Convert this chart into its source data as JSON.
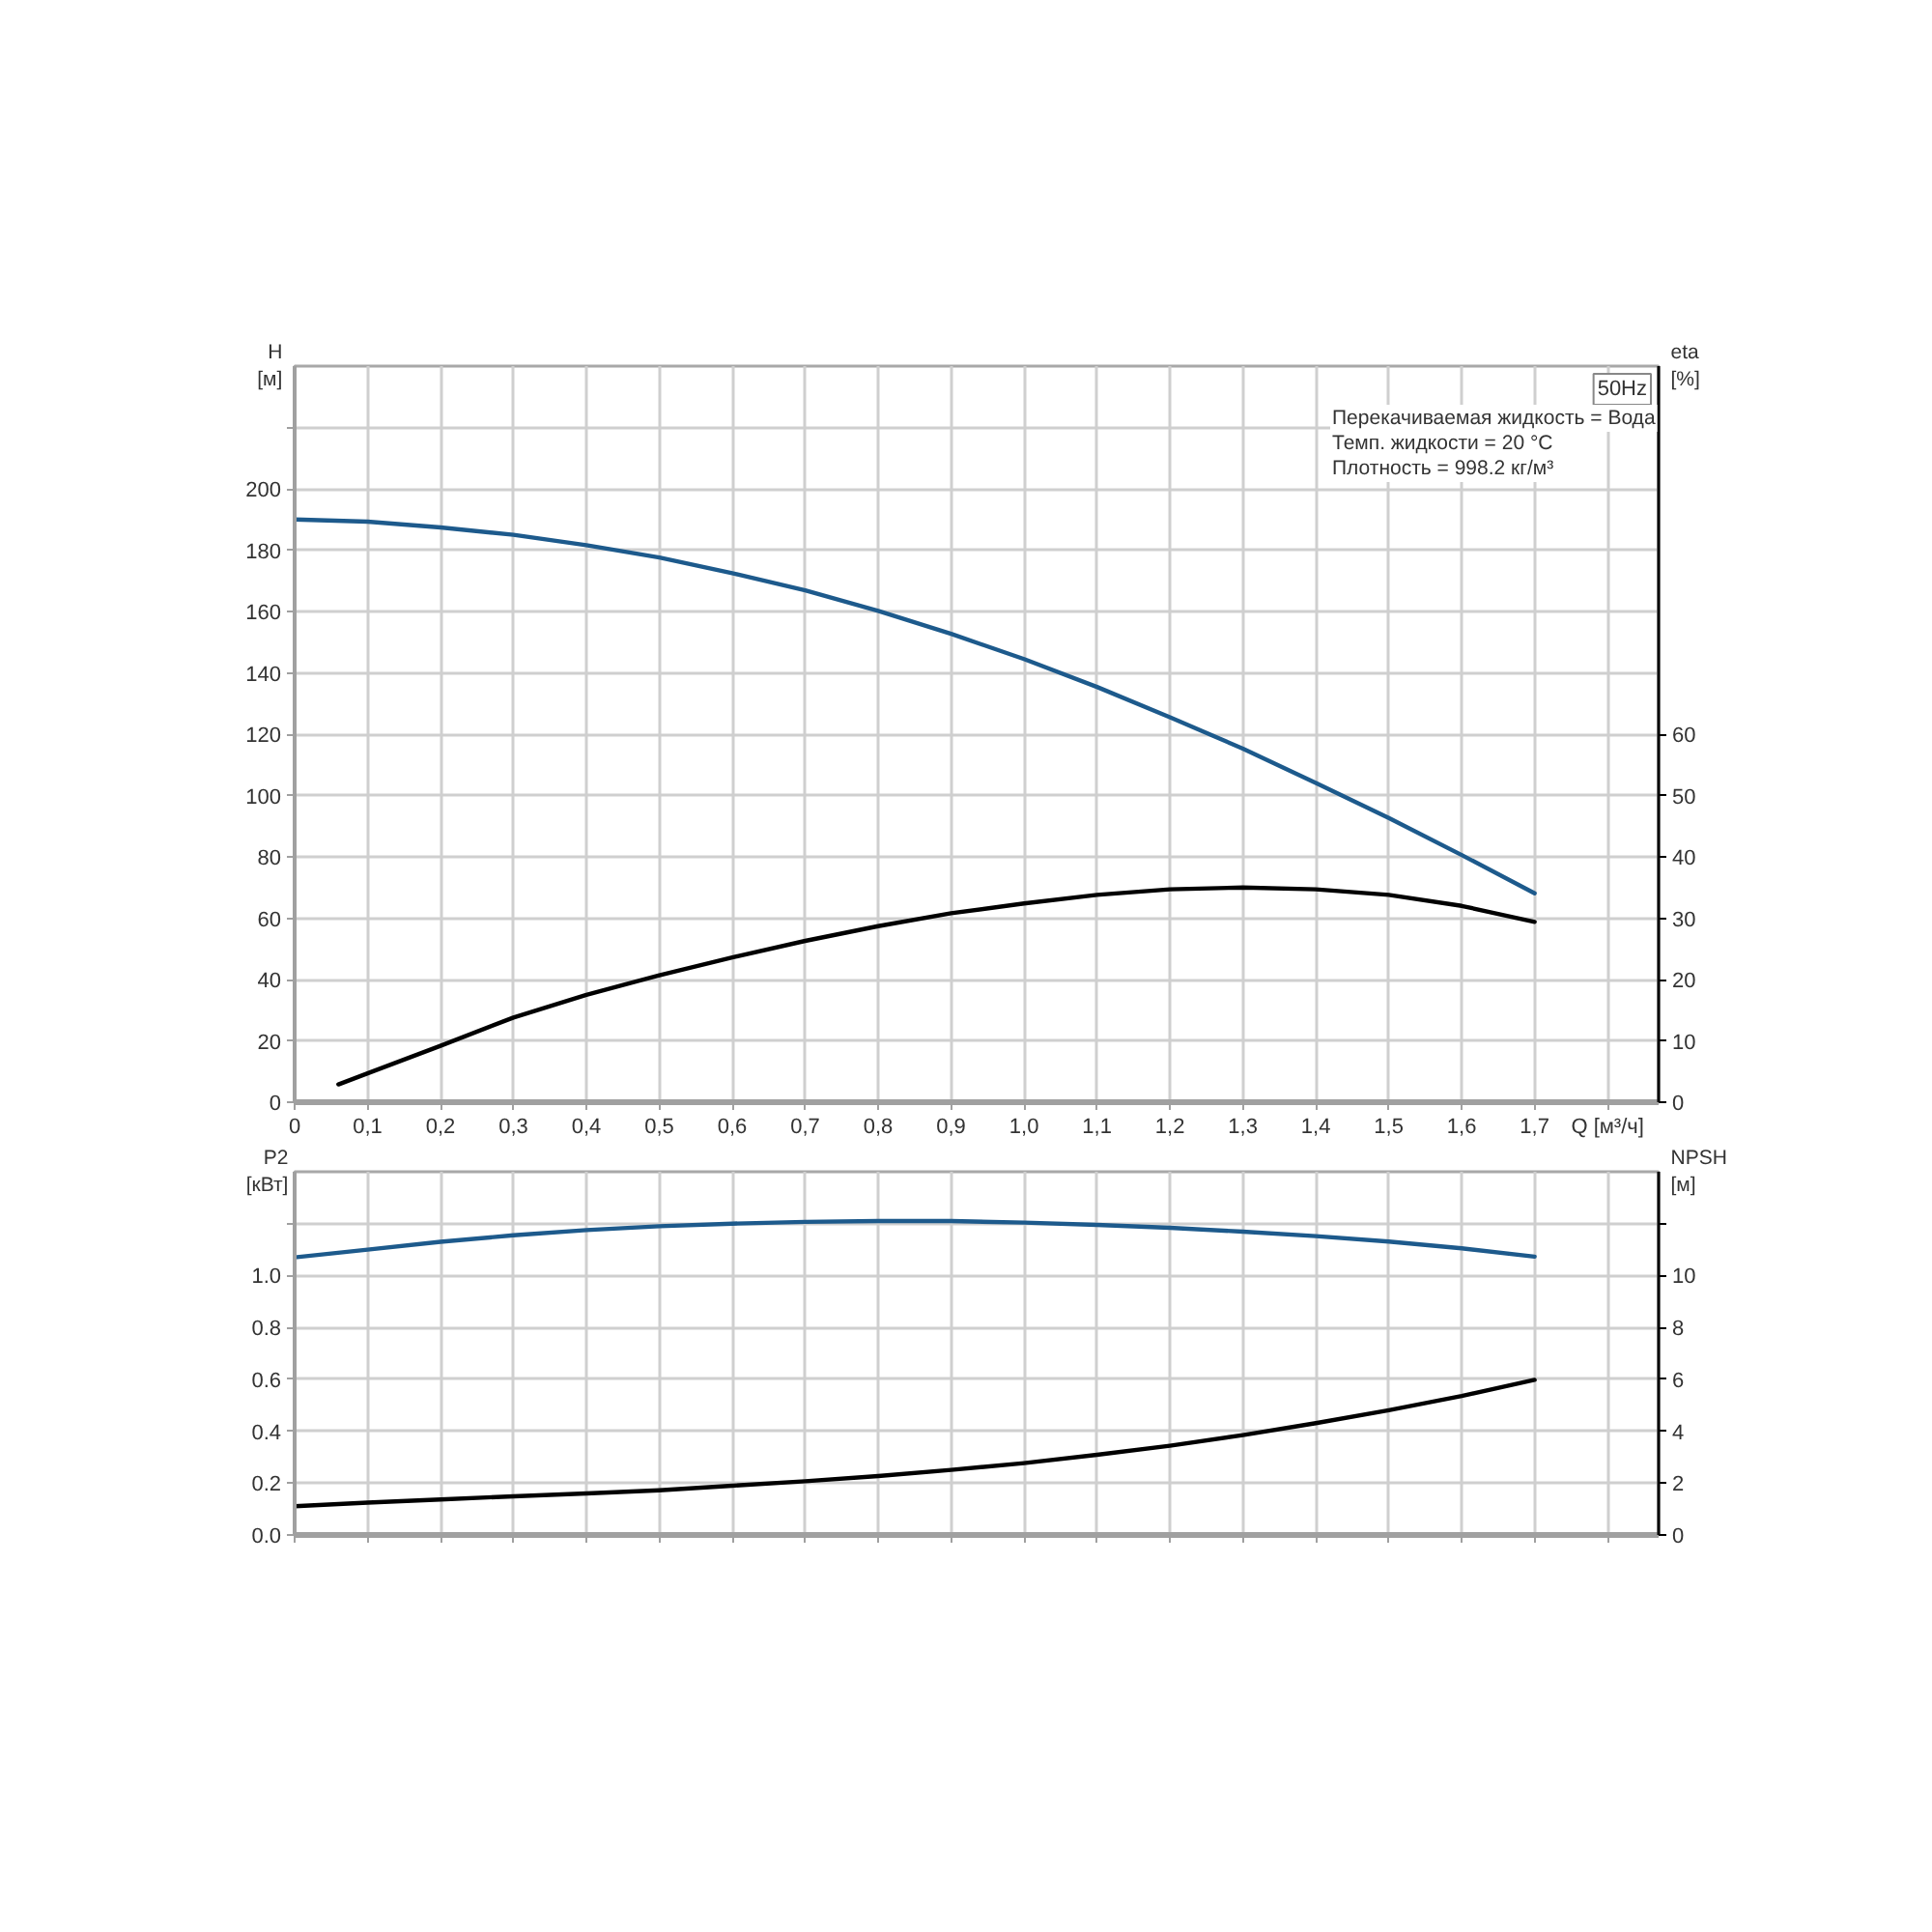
{
  "chart_data": [
    {
      "type": "line",
      "xlabel": "Q [м³/ч]",
      "ylabel": "H [м]",
      "y2label": "eta [%]",
      "annotations": [
        "50Hz",
        "Перекачиваемая жидкость = Вода",
        "Темп. жидкости = 20 °C",
        "Плотность = 998.2 кг/м³"
      ],
      "x": [
        0,
        0.1,
        0.2,
        0.3,
        0.4,
        0.5,
        0.6,
        0.7,
        0.8,
        0.9,
        1.0,
        1.1,
        1.2,
        1.3,
        1.4,
        1.5,
        1.6,
        1.7
      ],
      "xlim": [
        0,
        1.87
      ],
      "xticks": [
        0,
        {
          "value": 0.1,
          "label": "0,1"
        },
        {
          "value": 0.2,
          "label": "0,2"
        },
        {
          "value": 0.3,
          "label": "0,3"
        },
        {
          "value": 0.4,
          "label": "0,4"
        },
        {
          "value": 0.5,
          "label": "0,5"
        },
        {
          "value": 0.6,
          "label": "0,6"
        },
        {
          "value": 0.7,
          "label": "0,7"
        },
        {
          "value": 0.8,
          "label": "0,8"
        },
        {
          "value": 0.9,
          "label": "0,9"
        },
        {
          "value": 1.0,
          "label": "1,0"
        },
        {
          "value": 1.1,
          "label": "1,1"
        },
        {
          "value": 1.2,
          "label": "1,2"
        },
        {
          "value": 1.3,
          "label": "1,3"
        },
        {
          "value": 1.4,
          "label": "1,4"
        },
        {
          "value": 1.5,
          "label": "1,5"
        },
        {
          "value": 1.6,
          "label": "1,6"
        },
        {
          "value": 1.7,
          "label": "1,7"
        },
        {
          "value": 1.8,
          "label": null
        }
      ],
      "ylim": [
        0,
        240
      ],
      "yticks": [
        0,
        20,
        40,
        60,
        80,
        100,
        120,
        140,
        160,
        180,
        200,
        {
          "value": 220,
          "label": null
        }
      ],
      "y2lim": [
        0,
        120
      ],
      "y2ticks": [
        0,
        10,
        20,
        30,
        40,
        50,
        60
      ],
      "grid": true,
      "series": [
        {
          "color": "#1d5a8c",
          "values": [
            190,
            189.3,
            187.4,
            185,
            181.6,
            177.6,
            172.5,
            166.9,
            160.2,
            152.7,
            144.5,
            135.4,
            125.5,
            115.3,
            104.1,
            92.7,
            80.6,
            68.1
          ]
        },
        {
          "color": "#000000",
          "axis": "y2",
          "x": [
            0.06,
            0.1,
            0.2,
            0.3,
            0.4,
            0.5,
            0.6,
            0.7,
            0.8,
            0.9,
            1.0,
            1.1,
            1.2,
            1.3,
            1.4,
            1.5,
            1.6,
            1.7
          ],
          "values": [
            2.9,
            4.7,
            9.2,
            13.8,
            17.5,
            20.7,
            23.6,
            26.3,
            28.7,
            30.8,
            32.4,
            33.8,
            34.7,
            35.0,
            34.7,
            33.8,
            32.0,
            29.4
          ]
        }
      ]
    },
    {
      "type": "line",
      "ylabel": "P2 [кВт]",
      "y2label": "NPSH [м]",
      "x": [
        0,
        0.1,
        0.2,
        0.3,
        0.4,
        0.5,
        0.6,
        0.7,
        0.8,
        0.9,
        1.0,
        1.1,
        1.2,
        1.3,
        1.4,
        1.5,
        1.6,
        1.7
      ],
      "xlim": [
        0,
        1.87
      ],
      "xticks": [
        {
          "value": 0,
          "label": null
        },
        {
          "value": 0.1,
          "label": null
        },
        {
          "value": 0.2,
          "label": null
        },
        {
          "value": 0.3,
          "label": null
        },
        {
          "value": 0.4,
          "label": null
        },
        {
          "value": 0.5,
          "label": null
        },
        {
          "value": 0.6,
          "label": null
        },
        {
          "value": 0.7,
          "label": null
        },
        {
          "value": 0.8,
          "label": null
        },
        {
          "value": 0.9,
          "label": null
        },
        {
          "value": 1.0,
          "label": null
        },
        {
          "value": 1.1,
          "label": null
        },
        {
          "value": 1.2,
          "label": null
        },
        {
          "value": 1.3,
          "label": null
        },
        {
          "value": 1.4,
          "label": null
        },
        {
          "value": 1.5,
          "label": null
        },
        {
          "value": 1.6,
          "label": null
        },
        {
          "value": 1.7,
          "label": null
        },
        {
          "value": 1.8,
          "label": null
        }
      ],
      "ylim": [
        0,
        1.4
      ],
      "yticks": [
        {
          "value": 0,
          "label": "0.0"
        },
        0.2,
        0.4,
        0.6,
        0.8,
        {
          "value": 1.0,
          "label": "1.0"
        },
        {
          "value": 1.2,
          "label": null
        }
      ],
      "y2lim": [
        0,
        14
      ],
      "y2ticks": [
        0,
        2,
        4,
        6,
        8,
        10,
        {
          "value": 12,
          "label": null
        }
      ],
      "grid": true,
      "tick_labels": "y",
      "series": [
        {
          "color": "#1d5a8c",
          "values": [
            1.07,
            1.1,
            1.13,
            1.155,
            1.175,
            1.19,
            1.2,
            1.207,
            1.21,
            1.21,
            1.204,
            1.195,
            1.184,
            1.169,
            1.152,
            1.131,
            1.105,
            1.073
          ]
        },
        {
          "color": "#000000",
          "axis": "y2",
          "values": [
            1.11,
            1.25,
            1.37,
            1.49,
            1.6,
            1.72,
            1.9,
            2.07,
            2.27,
            2.51,
            2.77,
            3.09,
            3.44,
            3.85,
            4.31,
            4.81,
            5.36,
            5.98
          ]
        }
      ]
    }
  ]
}
